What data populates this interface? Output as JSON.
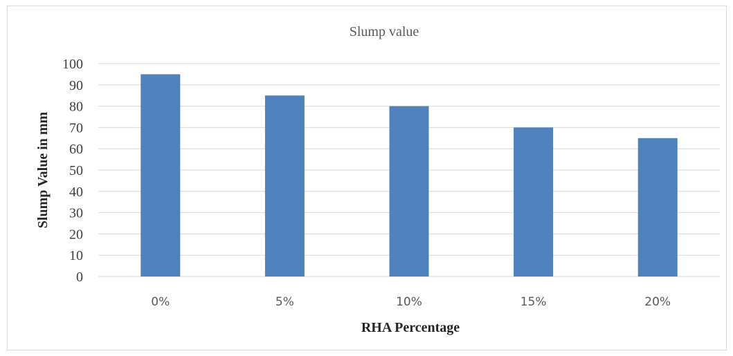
{
  "chart_data": {
    "type": "bar",
    "title": "Slump value",
    "xlabel": "RHA Percentage",
    "ylabel": "Slump Value in mm",
    "categories": [
      "0%",
      "5%",
      "10%",
      "15%",
      "20%"
    ],
    "values": [
      95,
      85,
      80,
      70,
      65
    ],
    "ylim": [
      0,
      100
    ],
    "yticks": [
      0,
      10,
      20,
      30,
      40,
      50,
      60,
      70,
      80,
      90,
      100
    ],
    "grid": true,
    "legend": "none",
    "bar_color": "#4f81bd",
    "grid_color": "#d9d9d9"
  }
}
